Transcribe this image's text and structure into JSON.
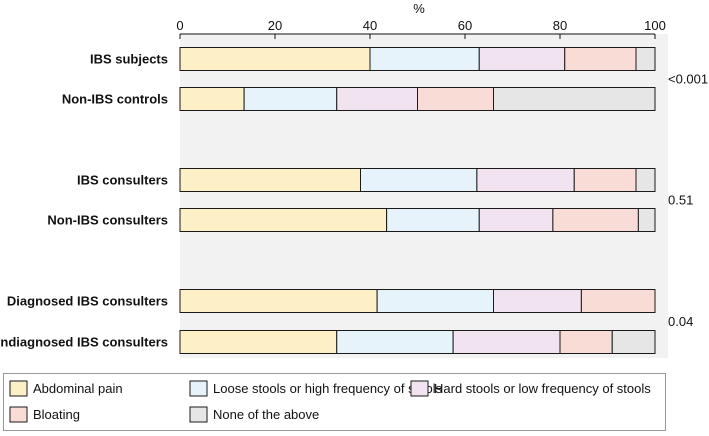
{
  "chart_data": {
    "type": "bar",
    "orientation": "horizontal",
    "stacked": true,
    "xlabel": "%",
    "xlim": [
      0,
      100
    ],
    "xticks": [
      "0",
      "20",
      "40",
      "60",
      "80",
      "100"
    ],
    "categories": [
      "IBS subjects",
      "Non-IBS controls",
      "IBS consulters",
      "Non-IBS consulters",
      "Diagnosed IBS consulters",
      "Undiagnosed IBS consulters"
    ],
    "series": [
      {
        "name": "Abdominal pain",
        "color": "#fdefc6",
        "values": [
          40,
          13.5,
          38,
          43.5,
          41.5,
          33
        ]
      },
      {
        "name": "Loose stools or high frequency of stools",
        "color": "#e6f3fb",
        "values": [
          23,
          19.5,
          24.5,
          19.5,
          24.5,
          24.5
        ]
      },
      {
        "name": "Hard stools or low frequency of stools",
        "color": "#f1e3f0",
        "values": [
          18,
          17,
          20.5,
          15.5,
          18.5,
          22.5
        ]
      },
      {
        "name": "Bloating",
        "color": "#fadcd6",
        "values": [
          15,
          16,
          13,
          18,
          15.5,
          11
        ]
      },
      {
        "name": "None of the above",
        "color": "#e6e6e6",
        "values": [
          4,
          34,
          4,
          3.5,
          0,
          9
        ]
      }
    ],
    "groups": [
      {
        "rows": [
          0,
          1
        ],
        "p_value": "<0.001"
      },
      {
        "rows": [
          2,
          3
        ],
        "p_value": "0.51"
      },
      {
        "rows": [
          4,
          5
        ],
        "p_value": "0.04"
      }
    ],
    "background_color": "#f2f2f2",
    "legend_position": "bottom"
  }
}
